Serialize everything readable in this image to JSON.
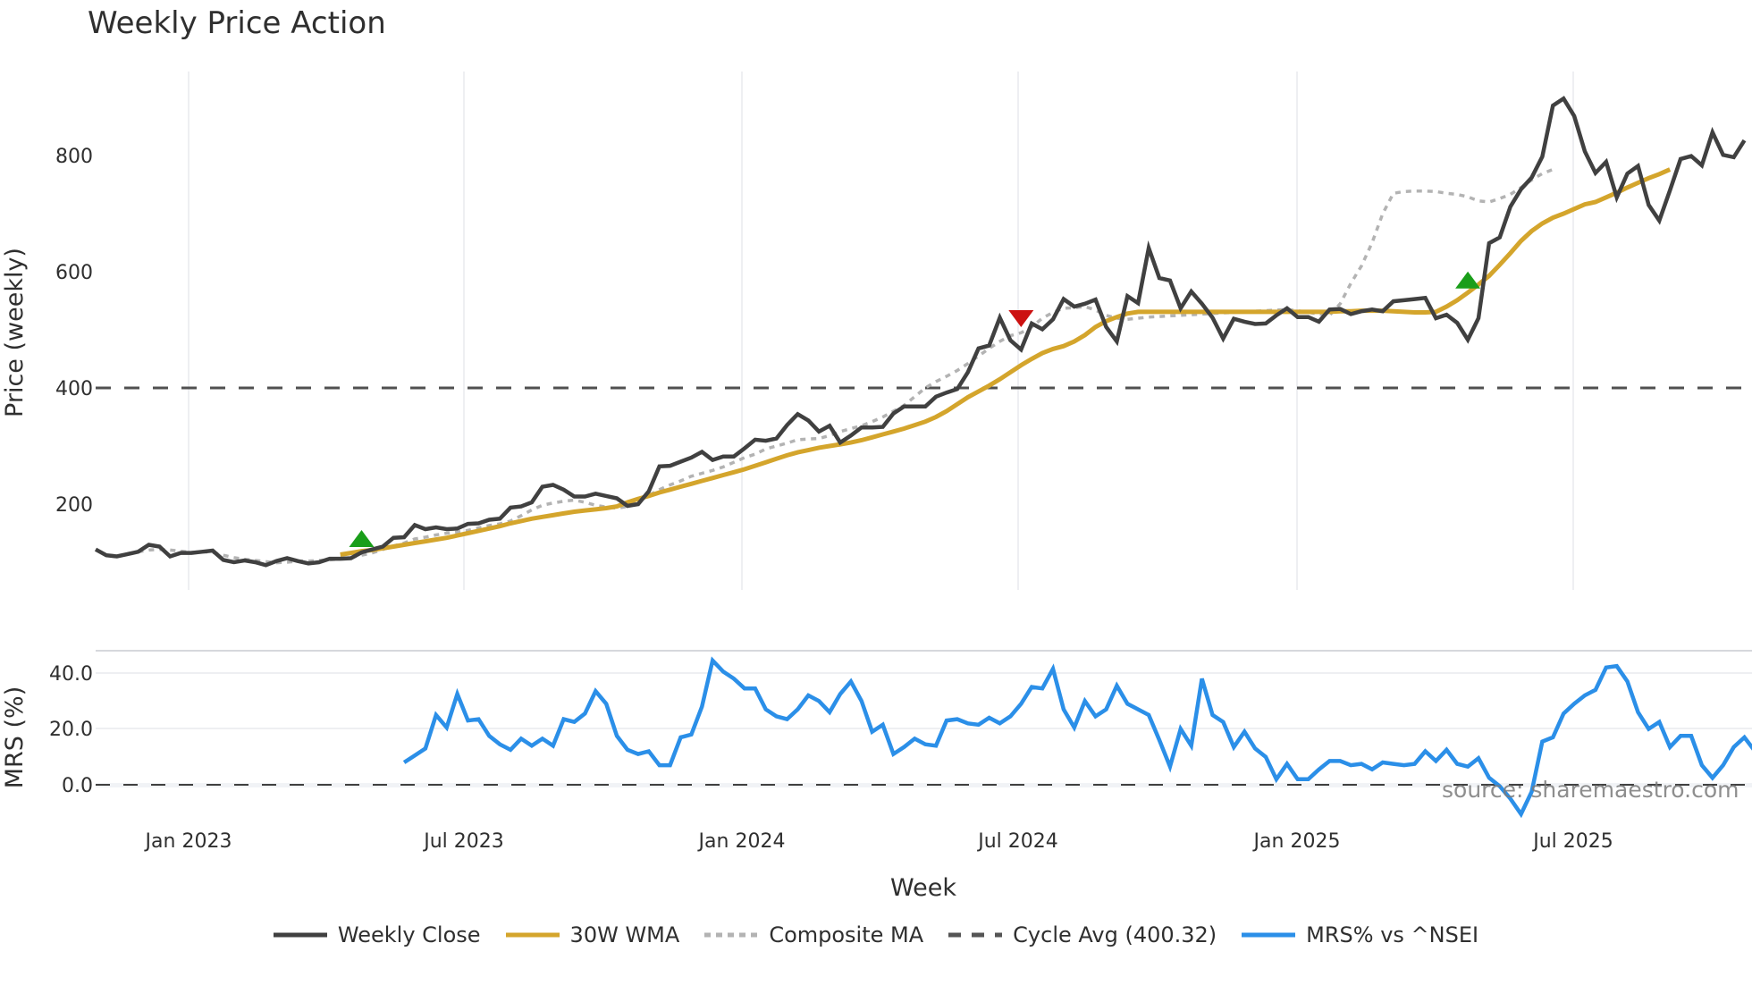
{
  "title": "Weekly Price Action",
  "colors": {
    "close": "#404040",
    "wma": "#d4a52c",
    "composite": "#b3b3b3",
    "cycle": "#505050",
    "mrs": "#2b8fe8",
    "buy_marker": "#1a9e1a",
    "sell_marker": "#cc1111",
    "grid": "#e8eaee"
  },
  "legend": [
    {
      "label": "Weekly Close",
      "style": "solid",
      "color": "#404040"
    },
    {
      "label": "30W WMA",
      "style": "solid",
      "color": "#d4a52c"
    },
    {
      "label": "Composite MA",
      "style": "dotted",
      "color": "#b3b3b3"
    },
    {
      "label": "Cycle Avg (400.32)",
      "style": "dashed",
      "color": "#555555"
    },
    {
      "label": "MRS% vs ^NSEI",
      "style": "solid",
      "color": "#2b8fe8"
    }
  ],
  "source_text": "source: sharemaestro.com",
  "chart_data": [
    {
      "type": "line",
      "title": "Weekly Price Action",
      "xlabel": "",
      "ylabel": "Price (weekly)",
      "yticks": [
        200,
        400,
        600,
        800
      ],
      "ylim": [
        50,
        950
      ],
      "x_ticks": [
        "Jan 2023",
        "Jul 2023",
        "Jan 2024",
        "Jul 2024",
        "Jan 2025",
        "Jul 2025"
      ],
      "grid": "vertical",
      "hline": {
        "label": "Cycle Avg (400.32)",
        "value": 400.32
      },
      "series": [
        {
          "name": "Weekly Close",
          "start_week": 0,
          "values": [
            122,
            112,
            110,
            114,
            118,
            130,
            127,
            110,
            116,
            116,
            118,
            120,
            104,
            100,
            103,
            100,
            95,
            102,
            107,
            102,
            98,
            100,
            106,
            106,
            107,
            117,
            122,
            127,
            142,
            143,
            164,
            157,
            160,
            157,
            158,
            166,
            167,
            173,
            175,
            194,
            196,
            203,
            230,
            233,
            225,
            213,
            213,
            218,
            214,
            210,
            197,
            200,
            222,
            265,
            266,
            273,
            280,
            290,
            276,
            282,
            282,
            296,
            311,
            309,
            313,
            336,
            355,
            344,
            325,
            335,
            306,
            318,
            332,
            332,
            333,
            356,
            368,
            368,
            368,
            385,
            392,
            398,
            427,
            468,
            473,
            521,
            482,
            466,
            511,
            501,
            518,
            553,
            540,
            545,
            552,
            505,
            480,
            558,
            546,
            641,
            589,
            585,
            537,
            566,
            545,
            521,
            485,
            519,
            514,
            510,
            511,
            525,
            537,
            522,
            522,
            514,
            535,
            536,
            527,
            532,
            535,
            532,
            549,
            551,
            553,
            555,
            520,
            526,
            512,
            483,
            520,
            649,
            659,
            712,
            742,
            762,
            798,
            886,
            898,
            868,
            807,
            770,
            789,
            728,
            769,
            782,
            715,
            688,
            740,
            794,
            799,
            783,
            840,
            801,
            797,
            826
          ]
        },
        {
          "name": "30W WMA",
          "start_week": 23,
          "values": [
            113,
            116,
            119,
            121,
            124,
            127,
            130,
            133,
            136,
            139,
            142,
            146,
            150,
            154,
            158,
            162,
            167,
            171,
            175,
            178,
            181,
            184,
            187,
            189,
            191,
            193,
            196,
            203,
            209,
            214,
            220,
            225,
            230,
            235,
            240,
            245,
            250,
            255,
            260,
            266,
            272,
            278,
            284,
            289,
            293,
            297,
            300,
            303,
            306,
            310,
            315,
            320,
            325,
            330,
            336,
            342,
            350,
            360,
            372,
            384,
            394,
            404,
            415,
            427,
            439,
            450,
            460,
            467,
            472,
            480,
            491,
            505,
            515,
            522,
            528,
            531,
            531,
            531,
            531,
            531,
            531,
            531,
            531,
            531,
            531,
            531,
            531,
            531,
            531,
            531,
            531,
            531,
            531,
            531,
            532,
            532,
            533,
            533,
            533,
            532,
            531,
            530,
            530,
            531,
            540,
            551,
            564,
            578,
            593,
            612,
            632,
            653,
            670,
            683,
            693,
            700,
            708,
            716,
            720,
            728,
            736,
            745,
            753,
            761,
            768,
            776
          ]
        },
        {
          "name": "Composite MA",
          "start_week": 3,
          "values": [
            115,
            118,
            121,
            122,
            121,
            119,
            117,
            118,
            117,
            112,
            108,
            105,
            103,
            101,
            99,
            100,
            102,
            102,
            103,
            104,
            106,
            108,
            112,
            116,
            122,
            128,
            133,
            140,
            143,
            147,
            150,
            152,
            155,
            159,
            163,
            166,
            171,
            180,
            190,
            198,
            202,
            205,
            207,
            203,
            198,
            195,
            193,
            196,
            205,
            215,
            225,
            233,
            240,
            248,
            253,
            258,
            264,
            272,
            280,
            286,
            295,
            300,
            305,
            311,
            312,
            313,
            318,
            325,
            330,
            335,
            342,
            350,
            360,
            370,
            385,
            400,
            411,
            420,
            430,
            442,
            455,
            468,
            480,
            490,
            495,
            505,
            520,
            530,
            537,
            538,
            540,
            534,
            525,
            520,
            518,
            520,
            522,
            523,
            524,
            525,
            526,
            527,
            528,
            529,
            530,
            531,
            532,
            533,
            534,
            535,
            533,
            530,
            527,
            525,
            545,
            580,
            610,
            650,
            700,
            735,
            738,
            739,
            739,
            738,
            735,
            733,
            729,
            722,
            720,
            726,
            733,
            745,
            758,
            769,
            776
          ]
        },
        {
          "name": "Cycle Avg (400.32)",
          "values": [
            400.32
          ]
        }
      ],
      "markers": [
        {
          "type": "buy",
          "shape": "triangle-up",
          "week": 25,
          "price": 140
        },
        {
          "type": "sell",
          "shape": "triangle-down",
          "week": 87,
          "price": 520
        },
        {
          "type": "buy",
          "shape": "triangle-up",
          "week": 129,
          "price": 585
        }
      ]
    },
    {
      "type": "line",
      "title": "",
      "xlabel": "Week",
      "ylabel": "MRS (%)",
      "yticks": [
        0.0,
        20.0,
        40.0
      ],
      "ylim": [
        -12,
        50
      ],
      "x_ticks": [
        "Jan 2023",
        "Jul 2023",
        "Jan 2024",
        "Jul 2024",
        "Jan 2025",
        "Jul 2025"
      ],
      "hline": {
        "value": 0.0,
        "style": "dashed"
      },
      "series": [
        {
          "name": "MRS% vs ^NSEI",
          "start_week": 29,
          "values": [
            8,
            10.5,
            13,
            25,
            20.5,
            32.5,
            23,
            23.5,
            17.5,
            14.5,
            12.5,
            16.5,
            14,
            16.5,
            14,
            23.5,
            22.5,
            25.5,
            33.5,
            29,
            17.5,
            12.5,
            11,
            12,
            7,
            7,
            17,
            18,
            28,
            44.5,
            40.5,
            38,
            34.5,
            34.5,
            27,
            24.5,
            23.5,
            27,
            32,
            30,
            26,
            32.5,
            37,
            30,
            19,
            21.5,
            11,
            13.5,
            16.5,
            14.5,
            14,
            23,
            23.5,
            22,
            21.5,
            24,
            22,
            24.5,
            29,
            35,
            34.5,
            41.5,
            27,
            20.5,
            30,
            24.5,
            27,
            35.5,
            29,
            27,
            25,
            16,
            6.5,
            20,
            14,
            38,
            25,
            22.5,
            13.5,
            19,
            13,
            10,
            2,
            7.5,
            2,
            2,
            5.5,
            8.5,
            8.5,
            7,
            7.5,
            5.5,
            8,
            7.5,
            7,
            7.5,
            12,
            8.5,
            12.5,
            7.5,
            6.5,
            9.5,
            2.5,
            -0.5,
            -5,
            -10.5,
            -2.5,
            15.5,
            17,
            25.5,
            29,
            32,
            34,
            42,
            42.5,
            37,
            26,
            20,
            22.5,
            13.5,
            17.5,
            17.5,
            7,
            2.5,
            7,
            13.5,
            17,
            12,
            18.5,
            10,
            7.5,
            10.5
          ]
        }
      ]
    }
  ]
}
